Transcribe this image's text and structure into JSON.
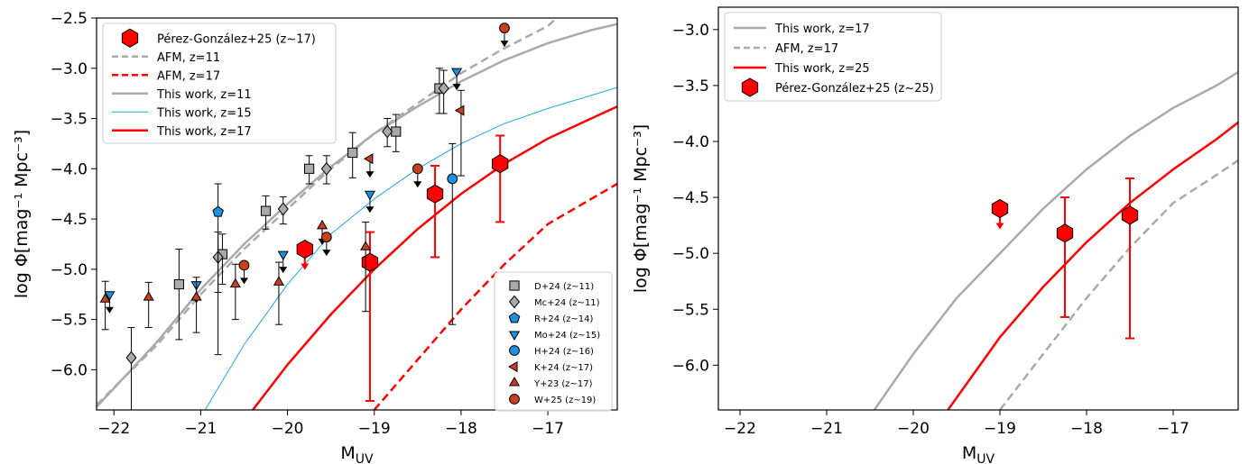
{
  "chart_data": [
    {
      "type": "scatter",
      "xlabel": "M_UV",
      "ylabel": "log Φ[mag⁻¹ Mpc⁻³]",
      "xlim": [
        -22.2,
        -16.2
      ],
      "ylim": [
        -6.4,
        -2.5
      ],
      "xticks": [
        -22,
        -21,
        -20,
        -19,
        -18,
        -17
      ],
      "yticks": [
        -6.0,
        -5.5,
        -5.0,
        -4.5,
        -4.0,
        -3.5,
        -3.0,
        -2.5
      ],
      "grid": false,
      "curves": [
        {
          "name": "AFM, z=11",
          "style": "dashed",
          "color": "#aaaaaa",
          "width": 2.5,
          "points": [
            [
              -22.2,
              -6.35
            ],
            [
              -21.5,
              -5.75
            ],
            [
              -21.0,
              -5.25
            ],
            [
              -20.5,
              -4.8
            ],
            [
              -20.0,
              -4.4
            ],
            [
              -19.5,
              -4.0
            ],
            [
              -19.0,
              -3.65
            ],
            [
              -18.5,
              -3.35
            ],
            [
              -18.0,
              -3.05
            ],
            [
              -17.5,
              -2.8
            ],
            [
              -17.0,
              -2.58
            ],
            [
              -16.9,
              -2.5
            ]
          ]
        },
        {
          "name": "AFM, z=17",
          "style": "dashed",
          "color": "#ff0000",
          "width": 2.5,
          "points": [
            [
              -19.0,
              -6.4
            ],
            [
              -18.5,
              -5.9
            ],
            [
              -18.0,
              -5.4
            ],
            [
              -17.5,
              -4.95
            ],
            [
              -17.0,
              -4.55
            ],
            [
              -16.5,
              -4.3
            ],
            [
              -16.2,
              -4.15
            ]
          ]
        },
        {
          "name": "This work, z=11",
          "style": "solid",
          "color": "#aaaaaa",
          "width": 2.5,
          "points": [
            [
              -22.2,
              -6.37
            ],
            [
              -21.5,
              -5.72
            ],
            [
              -21.0,
              -5.2
            ],
            [
              -20.5,
              -4.75
            ],
            [
              -20.0,
              -4.35
            ],
            [
              -19.5,
              -3.98
            ],
            [
              -19.0,
              -3.65
            ],
            [
              -18.5,
              -3.38
            ],
            [
              -18.0,
              -3.13
            ],
            [
              -17.5,
              -2.92
            ],
            [
              -17.0,
              -2.75
            ],
            [
              -16.5,
              -2.62
            ],
            [
              -16.2,
              -2.56
            ]
          ]
        },
        {
          "name": "This work, z=15",
          "style": "solid",
          "color": "#1fa8e0",
          "width": 1,
          "points": [
            [
              -20.95,
              -6.4
            ],
            [
              -20.5,
              -5.75
            ],
            [
              -20.0,
              -5.15
            ],
            [
              -19.5,
              -4.65
            ],
            [
              -19.0,
              -4.3
            ],
            [
              -18.5,
              -4.0
            ],
            [
              -18.0,
              -3.75
            ],
            [
              -17.5,
              -3.55
            ],
            [
              -17.0,
              -3.4
            ],
            [
              -16.5,
              -3.27
            ],
            [
              -16.2,
              -3.19
            ]
          ]
        },
        {
          "name": "This work, z=17",
          "style": "solid",
          "color": "#ff0000",
          "width": 2.5,
          "points": [
            [
              -20.4,
              -6.4
            ],
            [
              -20.0,
              -5.95
            ],
            [
              -19.5,
              -5.45
            ],
            [
              -19.0,
              -5.0
            ],
            [
              -18.5,
              -4.6
            ],
            [
              -18.0,
              -4.25
            ],
            [
              -17.5,
              -3.95
            ],
            [
              -17.0,
              -3.7
            ],
            [
              -16.5,
              -3.5
            ],
            [
              -16.2,
              -3.38
            ]
          ]
        }
      ],
      "series": [
        {
          "name": "Pérez-González+25 (z~17)",
          "marker": "hexagon",
          "color": "#ff0000",
          "errcolor": "#ff0000",
          "points": [
            {
              "x": -19.8,
              "y": -4.8,
              "upper_limit": true
            },
            {
              "x": -19.05,
              "y": -4.93,
              "err_lo": 1.38,
              "err_hi": 0.3
            },
            {
              "x": -18.3,
              "y": -4.25,
              "err_lo": 0.63,
              "err_hi": 0.28
            },
            {
              "x": -17.55,
              "y": -3.95,
              "err_lo": 0.58,
              "err_hi": 0.28
            }
          ]
        },
        {
          "name": "D+24 (z~11)",
          "marker": "square",
          "color": "#aaaaaa",
          "errcolor": "#000000",
          "points": [
            {
              "x": -21.25,
              "y": -5.15,
              "err_lo": 0.55,
              "err_hi": 0.35
            },
            {
              "x": -20.75,
              "y": -4.85,
              "err_lo": 0.3,
              "err_hi": 0.2
            },
            {
              "x": -20.25,
              "y": -4.42,
              "err_lo": 0.18,
              "err_hi": 0.15
            },
            {
              "x": -19.75,
              "y": -4.0,
              "err_lo": 0.15,
              "err_hi": 0.13
            },
            {
              "x": -19.25,
              "y": -3.84,
              "err_lo": 0.25,
              "err_hi": 0.2
            },
            {
              "x": -18.75,
              "y": -3.63,
              "err_lo": 0.2,
              "err_hi": 0.17
            },
            {
              "x": -18.25,
              "y": -3.2,
              "err_lo": 0.25,
              "err_hi": 0.2
            }
          ]
        },
        {
          "name": "Mc+24 (z~11)",
          "marker": "diamond",
          "color": "#aaaaaa",
          "errcolor": "#000000",
          "points": [
            {
              "x": -21.8,
              "y": -5.88,
              "err_lo": 0.52,
              "err_hi": 0.3
            },
            {
              "x": -20.8,
              "y": -4.88,
              "err_lo": 0.35,
              "err_hi": 0.25
            },
            {
              "x": -20.05,
              "y": -4.4,
              "err_lo": 0.15,
              "err_hi": 0.12
            },
            {
              "x": -19.55,
              "y": -4.0,
              "err_lo": 0.15,
              "err_hi": 0.13
            },
            {
              "x": -18.85,
              "y": -3.63,
              "err_lo": 0.15,
              "err_hi": 0.13
            },
            {
              "x": -18.2,
              "y": -3.2,
              "err_lo": 0.25,
              "err_hi": 0.18
            }
          ]
        },
        {
          "name": "R+24 (z~14)",
          "marker": "pentagon",
          "color": "#1e90e0",
          "errcolor": "#000000",
          "points": [
            {
              "x": -20.8,
              "y": -4.43,
              "err_lo": 1.42,
              "err_hi": 0.28
            }
          ]
        },
        {
          "name": "Mo+24 (z~15)",
          "marker": "triangle-down",
          "color": "#1e90e0",
          "errcolor": "#000000",
          "points": [
            {
              "x": -22.05,
              "y": -5.25,
              "upper_limit": true
            },
            {
              "x": -21.05,
              "y": -5.15,
              "upper_limit": true
            },
            {
              "x": -20.05,
              "y": -4.85,
              "upper_limit": true
            },
            {
              "x": -19.05,
              "y": -4.25,
              "upper_limit": true
            },
            {
              "x": -18.05,
              "y": -3.03,
              "upper_limit": true
            }
          ]
        },
        {
          "name": "H+24 (z~16)",
          "marker": "circle",
          "color": "#1e90e0",
          "errcolor": "#000000",
          "points": [
            {
              "x": -18.1,
              "y": -4.1,
              "err_lo": 1.45,
              "err_hi": 0.35
            }
          ]
        },
        {
          "name": "K+24 (z~17)",
          "marker": "triangle-left",
          "color": "#c8401e",
          "errcolor": "#000000",
          "points": [
            {
              "x": -19.05,
              "y": -3.9,
              "upper_limit": true
            },
            {
              "x": -18.0,
              "y": -3.42,
              "err_lo": 0.65,
              "err_hi": 0.2
            }
          ]
        },
        {
          "name": "Y+23 (z~17)",
          "marker": "triangle-up",
          "color": "#c8401e",
          "errcolor": "#000000",
          "points": [
            {
              "x": -22.1,
              "y": -5.3,
              "err_lo": 0.3,
              "err_hi": 0.18
            },
            {
              "x": -21.6,
              "y": -5.28,
              "err_lo": 0.3,
              "err_hi": 0.15
            },
            {
              "x": -21.05,
              "y": -5.28,
              "err_lo": 0.35,
              "err_hi": 0.2
            },
            {
              "x": -20.6,
              "y": -5.15,
              "err_lo": 0.35,
              "err_hi": 0.2
            },
            {
              "x": -20.1,
              "y": -5.13,
              "err_lo": 0.42,
              "err_hi": 0.2
            },
            {
              "x": -19.6,
              "y": -4.57,
              "upper_limit": true
            },
            {
              "x": -19.1,
              "y": -4.78,
              "err_lo": 0.64,
              "err_hi": 0.25
            }
          ]
        },
        {
          "name": "W+25 (z~19)",
          "marker": "circle",
          "color": "#c8401e",
          "errcolor": "#000000",
          "points": [
            {
              "x": -20.5,
              "y": -4.96,
              "upper_limit": true
            },
            {
              "x": -19.55,
              "y": -4.68,
              "upper_limit": true
            },
            {
              "x": -18.5,
              "y": -4.0,
              "upper_limit": true
            },
            {
              "x": -17.5,
              "y": -2.6,
              "upper_limit": true
            }
          ]
        }
      ],
      "legend_upper_left": [
        "Pérez-González+25 (z~17)",
        "AFM, z=11",
        "AFM, z=17",
        "This work, z=11",
        "This work, z=15",
        "This work, z=17"
      ],
      "legend_lower_right": [
        "D+24 (z~11)",
        "Mc+24 (z~11)",
        "R+24 (z~14)",
        "Mo+24 (z~15)",
        "H+24 (z~16)",
        "K+24 (z~17)",
        "Y+23 (z~17)",
        "W+25 (z~19)"
      ]
    },
    {
      "type": "scatter",
      "xlabel": "M_UV",
      "ylabel": "log Φ[mag⁻¹ Mpc⁻³]",
      "xlim": [
        -22.25,
        -16.25
      ],
      "ylim": [
        -6.4,
        -2.8
      ],
      "xticks": [
        -22,
        -21,
        -20,
        -19,
        -18,
        -17
      ],
      "yticks": [
        -6.0,
        -5.5,
        -5.0,
        -4.5,
        -4.0,
        -3.5,
        -3.0
      ],
      "grid": false,
      "curves": [
        {
          "name": "This work, z=17",
          "style": "solid",
          "color": "#aaaaaa",
          "width": 2.5,
          "points": [
            [
              -20.45,
              -6.4
            ],
            [
              -20.0,
              -5.9
            ],
            [
              -19.5,
              -5.4
            ],
            [
              -19.0,
              -5.0
            ],
            [
              -18.5,
              -4.6
            ],
            [
              -18.0,
              -4.25
            ],
            [
              -17.5,
              -3.95
            ],
            [
              -17.0,
              -3.7
            ],
            [
              -16.5,
              -3.5
            ],
            [
              -16.25,
              -3.38
            ]
          ]
        },
        {
          "name": "AFM, z=17",
          "style": "dashed",
          "color": "#aaaaaa",
          "width": 2.5,
          "points": [
            [
              -19.0,
              -6.4
            ],
            [
              -18.5,
              -5.9
            ],
            [
              -18.0,
              -5.4
            ],
            [
              -17.5,
              -4.95
            ],
            [
              -17.0,
              -4.55
            ],
            [
              -16.5,
              -4.3
            ],
            [
              -16.25,
              -4.17
            ]
          ]
        },
        {
          "name": "This work, z=25",
          "style": "solid",
          "color": "#ff0000",
          "width": 2.5,
          "points": [
            [
              -19.6,
              -6.4
            ],
            [
              -19.0,
              -5.75
            ],
            [
              -18.5,
              -5.3
            ],
            [
              -18.0,
              -4.9
            ],
            [
              -17.5,
              -4.55
            ],
            [
              -17.0,
              -4.25
            ],
            [
              -16.5,
              -3.98
            ],
            [
              -16.25,
              -3.83
            ]
          ]
        }
      ],
      "series": [
        {
          "name": "Pérez-González+25 (z~25)",
          "marker": "hexagon",
          "color": "#ff0000",
          "errcolor": "#ff0000",
          "points": [
            {
              "x": -19.0,
              "y": -4.6,
              "upper_limit": true
            },
            {
              "x": -18.25,
              "y": -4.82,
              "err_lo": 0.75,
              "err_hi": 0.32
            },
            {
              "x": -17.5,
              "y": -4.66,
              "err_lo": 1.1,
              "err_hi": 0.33
            }
          ]
        }
      ],
      "legend_upper_left": [
        "This work, z=17",
        "AFM, z=17",
        "This work, z=25",
        "Pérez-González+25 (z~25)"
      ]
    }
  ]
}
